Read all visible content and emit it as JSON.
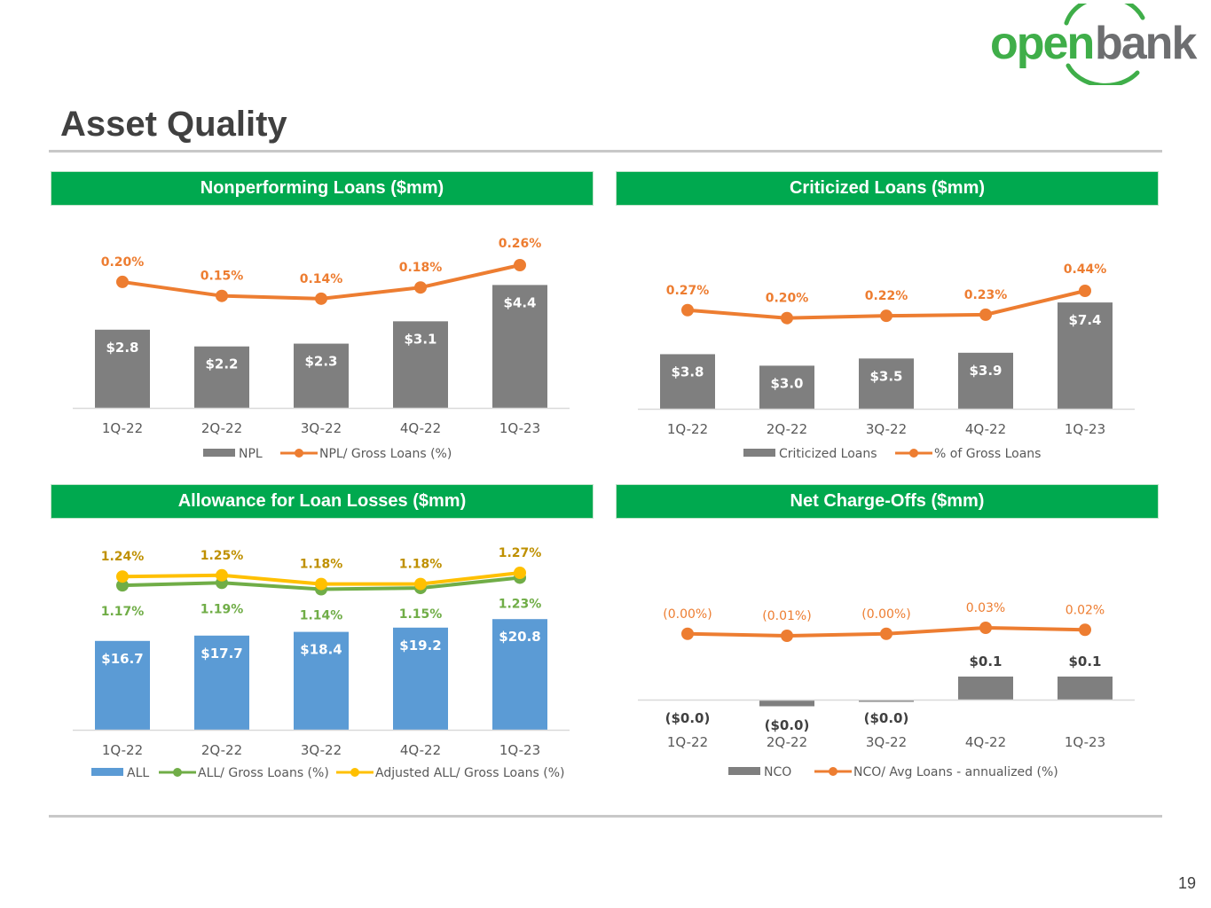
{
  "page": {
    "title": "Asset Quality",
    "page_number": "19"
  },
  "logo": {
    "text_open": "open",
    "text_bank": "bank",
    "green": "#3fae49",
    "gray": "#6d6e70"
  },
  "colors": {
    "header_green": "#00a94f",
    "bar_gray": "#7f7f7f",
    "bar_blue": "#5b9bd5",
    "line_orange": "#ed7d31",
    "line_green": "#70ad47",
    "line_yellow": "#ffc000",
    "label_gold": "#bf9000"
  },
  "panels": [
    {
      "header": "Nonperforming Loans ($mm)"
    },
    {
      "header": "Criticized Loans ($mm)"
    },
    {
      "header": "Allowance for Loan Losses ($mm)"
    },
    {
      "header": "Net Charge-Offs ($mm)"
    }
  ],
  "chart_data": [
    {
      "type": "bar",
      "title": "Nonperforming Loans ($mm)",
      "categories": [
        "1Q-22",
        "2Q-22",
        "3Q-22",
        "4Q-22",
        "1Q-23"
      ],
      "series": [
        {
          "name": "NPL",
          "kind": "bar",
          "color": "#7f7f7f",
          "values": [
            2.8,
            2.2,
            2.3,
            3.1,
            4.4
          ],
          "labels": [
            "$2.8",
            "$2.2",
            "$2.3",
            "$3.1",
            "$4.4"
          ]
        },
        {
          "name": "NPL/ Gross Loans (%)",
          "kind": "line",
          "color": "#ed7d31",
          "values": [
            0.2,
            0.15,
            0.14,
            0.18,
            0.26
          ],
          "labels": [
            "0.20%",
            "0.15%",
            "0.14%",
            "0.18%",
            "0.26%"
          ]
        }
      ],
      "legend": "bottom"
    },
    {
      "type": "bar",
      "title": "Criticized Loans ($mm)",
      "categories": [
        "1Q-22",
        "2Q-22",
        "3Q-22",
        "4Q-22",
        "1Q-23"
      ],
      "series": [
        {
          "name": "Criticized Loans",
          "kind": "bar",
          "color": "#7f7f7f",
          "values": [
            3.8,
            3.0,
            3.5,
            3.9,
            7.4
          ],
          "labels": [
            "$3.8",
            "$3.0",
            "$3.5",
            "$3.9",
            "$7.4"
          ]
        },
        {
          "name": "% of Gross Loans",
          "kind": "line",
          "color": "#ed7d31",
          "values": [
            0.27,
            0.2,
            0.22,
            0.23,
            0.44
          ],
          "labels": [
            "0.27%",
            "0.20%",
            "0.22%",
            "0.23%",
            "0.44%"
          ]
        }
      ],
      "legend": "bottom"
    },
    {
      "type": "bar",
      "title": "Allowance for Loan Losses ($mm)",
      "categories": [
        "1Q-22",
        "2Q-22",
        "3Q-22",
        "4Q-22",
        "1Q-23"
      ],
      "series": [
        {
          "name": "ALL",
          "kind": "bar",
          "color": "#5b9bd5",
          "values": [
            16.7,
            17.7,
            18.4,
            19.2,
            20.8
          ],
          "labels": [
            "$16.7",
            "$17.7",
            "$18.4",
            "$19.2",
            "$20.8"
          ]
        },
        {
          "name": "ALL/ Gross Loans (%)",
          "kind": "line",
          "color": "#70ad47",
          "label_color": "#70ad47",
          "values": [
            1.17,
            1.19,
            1.14,
            1.15,
            1.23
          ],
          "labels": [
            "1.17%",
            "1.19%",
            "1.14%",
            "1.15%",
            "1.23%"
          ]
        },
        {
          "name": "Adjusted ALL/ Gross Loans (%)",
          "kind": "line",
          "color": "#ffc000",
          "label_color": "#bf9000",
          "values": [
            1.24,
            1.25,
            1.18,
            1.18,
            1.27
          ],
          "labels": [
            "1.24%",
            "1.25%",
            "1.18%",
            "1.18%",
            "1.27%"
          ]
        }
      ],
      "legend": "bottom"
    },
    {
      "type": "bar",
      "title": "Net Charge-Offs ($mm)",
      "categories": [
        "1Q-22",
        "2Q-22",
        "3Q-22",
        "4Q-22",
        "1Q-23"
      ],
      "series": [
        {
          "name": "NCO",
          "kind": "bar",
          "color": "#7f7f7f",
          "values": [
            0.0,
            -0.03,
            -0.01,
            0.1,
            0.1
          ],
          "labels": [
            "($0.0)",
            "($0.0)",
            "($0.0)",
            "$0.1",
            "$0.1"
          ]
        },
        {
          "name": "NCO/ Avg Loans - annualized (%)",
          "kind": "line",
          "color": "#ed7d31",
          "values": [
            0.0,
            -0.01,
            0.0,
            0.03,
            0.02
          ],
          "labels": [
            "(0.00%)",
            "(0.01%)",
            "(0.00%)",
            "0.03%",
            "0.02%"
          ]
        }
      ],
      "legend": "bottom"
    }
  ]
}
